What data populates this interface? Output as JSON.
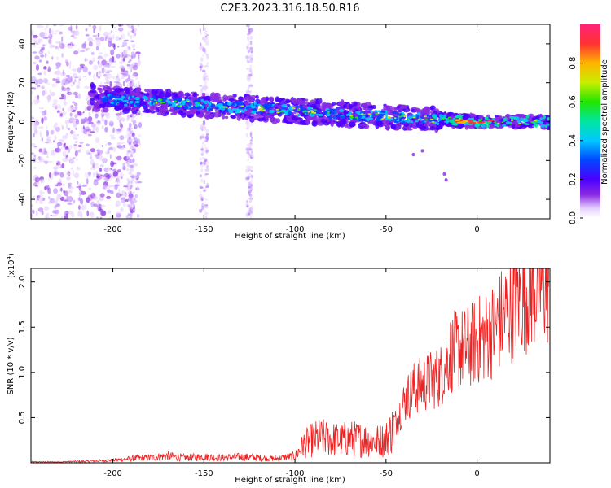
{
  "title": "C2E3.2023.316.18.50.R16",
  "colors": {
    "snr_line": "#ee2222",
    "colormap": [
      "#ffffff",
      "#e6d0ff",
      "#b27bff",
      "#8a2be2",
      "#4b00ff",
      "#0047ff",
      "#00c8ff",
      "#00e6a0",
      "#22e600",
      "#c8ee00",
      "#ffb400",
      "#ff3232",
      "#ff2277"
    ]
  },
  "chart_data": [
    {
      "type": "heatmap",
      "xlabel": "Height of straight line (km)",
      "ylabel": "Frequency (Hz)",
      "xlim": [
        -245,
        40
      ],
      "ylim": [
        -50,
        50
      ],
      "xticks": [
        -200,
        -150,
        -100,
        -50,
        0
      ],
      "yticks": [
        -40,
        -20,
        0,
        20,
        40
      ],
      "colorbar": {
        "label": "Normalized spectral amplitude",
        "range": [
          0,
          1
        ],
        "ticks": [
          0.0,
          0.2,
          0.4,
          0.6,
          0.8
        ]
      }
    },
    {
      "type": "line",
      "xlabel": "Height of straight line (km)",
      "ylabel": "SNR (10 * v/v)",
      "yscale_label": "(x10",
      "yscale_exp": "4",
      "yscale_close": ")",
      "xlim": [
        -245,
        40
      ],
      "ylim": [
        0,
        2.15
      ],
      "xticks": [
        -200,
        -150,
        -100,
        -50,
        0
      ],
      "yticks": [
        0.5,
        1.0,
        1.5,
        2.0
      ],
      "ytick_labels": [
        "0.5",
        "1.0",
        "1.5",
        "2.0"
      ],
      "series": [
        {
          "x": [
            -245,
            -230,
            -210,
            -200,
            -190,
            -180,
            -170,
            -160,
            -150,
            -140,
            -130,
            -120,
            -110,
            -100,
            -95,
            -90,
            -85,
            -80,
            -75,
            -70,
            -65,
            -60,
            -55,
            -50,
            -45,
            -40,
            -35,
            -30,
            -25,
            -20,
            -15,
            -10,
            -5,
            0,
            5,
            10,
            15,
            20,
            25,
            30,
            35,
            40
          ],
          "values": [
            0.01,
            0.01,
            0.02,
            0.03,
            0.05,
            0.06,
            0.08,
            0.06,
            0.07,
            0.06,
            0.07,
            0.06,
            0.05,
            0.08,
            0.22,
            0.28,
            0.3,
            0.28,
            0.27,
            0.29,
            0.28,
            0.27,
            0.26,
            0.28,
            0.45,
            0.7,
            0.85,
            0.9,
            0.95,
            1.0,
            1.25,
            1.3,
            1.32,
            1.4,
            1.45,
            1.55,
            1.7,
            1.85,
            1.95,
            2.02,
            2.06,
            2.08
          ]
        }
      ]
    }
  ]
}
